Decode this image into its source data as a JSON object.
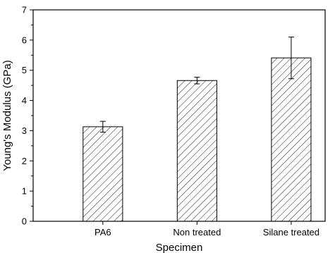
{
  "chart_data": {
    "type": "bar",
    "title": "",
    "xlabel": "Specimen",
    "ylabel": "Young's Modulus (GPa)",
    "ylim": [
      0,
      7
    ],
    "yticks": [
      0,
      1,
      2,
      3,
      4,
      5,
      6,
      7
    ],
    "categories": [
      "PA6",
      "Non treated",
      "Silane treated"
    ],
    "values": [
      3.13,
      4.66,
      5.41
    ],
    "error": [
      0.18,
      0.11,
      0.69
    ],
    "bar_fill": "hatched",
    "bar_color": "#000000",
    "grid": false,
    "legend": false
  }
}
